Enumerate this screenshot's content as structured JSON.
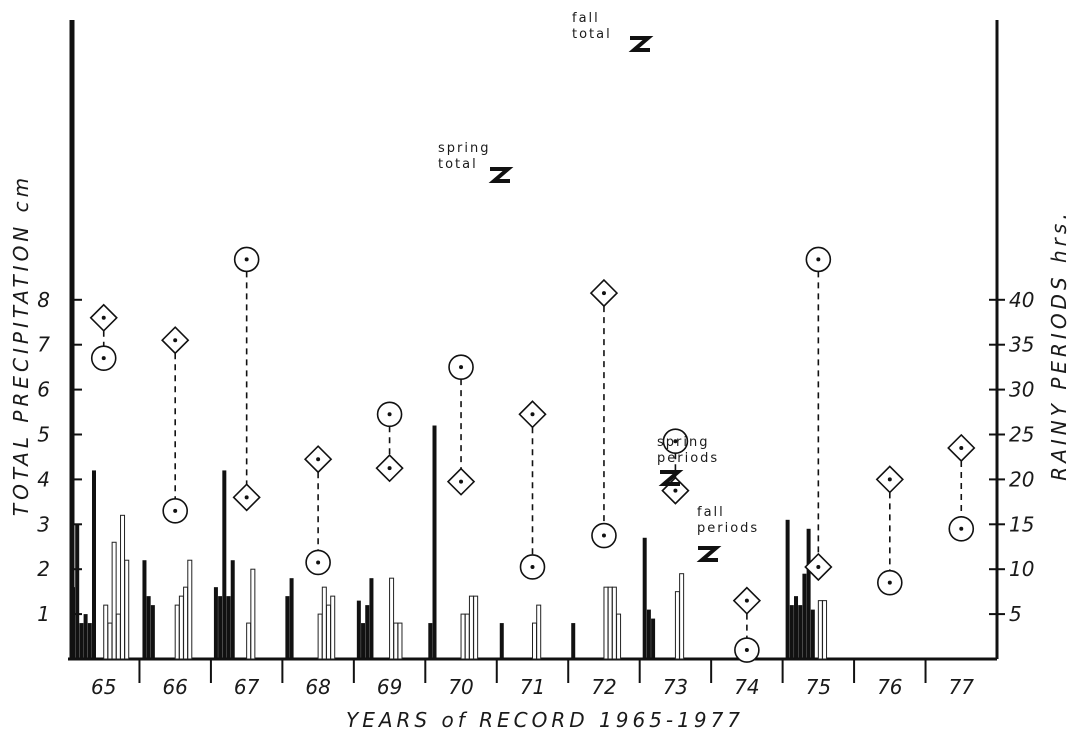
{
  "chart_data": {
    "type": "bar",
    "xlabel": "YEARS of RECORD 1965-1977",
    "ylabel_left": "TOTAL PRECIPITATION cm",
    "ylabel_right": "RAINY PERIODS hrs.",
    "ylim_left": [
      0,
      9
    ],
    "ylim_right": [
      0,
      45
    ],
    "left_ticks": [
      "1",
      "2",
      "3",
      "4",
      "5",
      "6",
      "7",
      "8"
    ],
    "right_ticks": [
      "5",
      "10",
      "15",
      "20",
      "25",
      "30",
      "35",
      "40"
    ],
    "categories": [
      "65",
      "66",
      "67",
      "68",
      "69",
      "70",
      "71",
      "72",
      "73",
      "74",
      "75",
      "76",
      "77"
    ],
    "annotations": {
      "spring_total": [
        "spring",
        "total"
      ],
      "fall_total": [
        "fall",
        "total"
      ],
      "spring_periods": [
        "spring",
        "periods"
      ],
      "fall_periods": [
        "fall",
        "periods"
      ]
    },
    "totals": [
      {
        "year": "65",
        "spring": 6.7,
        "fall": 7.6
      },
      {
        "year": "66",
        "spring": 3.3,
        "fall": 7.1
      },
      {
        "year": "67",
        "spring": 8.9,
        "fall": 3.6
      },
      {
        "year": "68",
        "spring": 2.15,
        "fall": 4.45
      },
      {
        "year": "69",
        "spring": 5.45,
        "fall": 4.25
      },
      {
        "year": "70",
        "spring": 6.5,
        "fall": 3.95
      },
      {
        "year": "71",
        "spring": 2.05,
        "fall": 5.45
      },
      {
        "year": "72",
        "spring": 2.75,
        "fall": 8.15
      },
      {
        "year": "73",
        "spring": 4.85,
        "fall": 3.75
      },
      {
        "year": "74",
        "spring": 0.2,
        "fall": 1.3
      },
      {
        "year": "75",
        "spring": 8.9,
        "fall": 2.05
      },
      {
        "year": "76",
        "spring": 1.7,
        "fall": 4.0
      },
      {
        "year": "77",
        "spring": 2.9,
        "fall": 4.7
      }
    ],
    "spring_periods_hrs": [
      [
        8,
        15,
        4,
        5,
        4,
        21
      ],
      [
        11,
        7,
        6
      ],
      [
        8,
        7,
        21,
        7,
        11
      ],
      [
        7,
        9
      ],
      [
        6.5,
        4,
        6,
        9
      ],
      [
        4,
        26
      ],
      [
        4
      ],
      [
        4
      ],
      [
        13.5,
        5.5,
        4.5
      ],
      [],
      [
        15.5,
        6,
        7,
        6,
        9.5,
        14.5,
        5.5
      ],
      [],
      []
    ],
    "fall_periods_hrs": [
      [
        6,
        4,
        13,
        5,
        16,
        11
      ],
      [
        6,
        7,
        8,
        11
      ],
      [
        4,
        10
      ],
      [
        5,
        8,
        6,
        7
      ],
      [
        9,
        4,
        4
      ],
      [
        5,
        5,
        7,
        7
      ],
      [
        4,
        6
      ],
      [
        8,
        8,
        8,
        5
      ],
      [
        7.5,
        9.5
      ],
      [],
      [
        6.5,
        6.5
      ],
      [],
      []
    ]
  }
}
